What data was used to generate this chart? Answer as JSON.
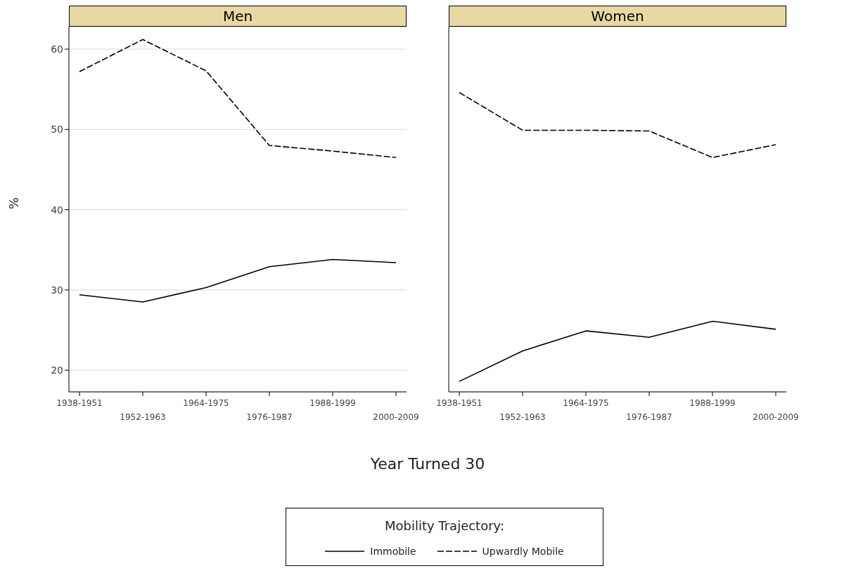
{
  "chart_data": [
    {
      "type": "line",
      "title": "Men",
      "xlabel": "Year Turned 30",
      "ylabel": "%",
      "legend_title": "Mobility Trajectory:",
      "legend": "bottom",
      "grid": "y",
      "marker": "none",
      "categories": [
        "1938-1951",
        "1952-1963",
        "1964-1975",
        "1976-1987",
        "1988-1999",
        "2000-2009"
      ],
      "ylim": [
        17.3,
        62.8
      ],
      "yticks": [
        20,
        30,
        40,
        50,
        60
      ],
      "series": [
        {
          "name": "Immobile",
          "color": "#000000",
          "line_style": "solid",
          "values": [
            29.4,
            28.5,
            30.3,
            32.9,
            33.8,
            33.4
          ]
        },
        {
          "name": "Upwardly Mobile",
          "color": "#000000",
          "line_style": "dashed",
          "values": [
            57.2,
            61.2,
            57.3,
            48.0,
            47.3,
            46.5
          ]
        }
      ]
    },
    {
      "type": "line",
      "title": "Women",
      "grid": "y",
      "marker": "none",
      "tick_labels": "x",
      "categories": [
        "1938-1951",
        "1952-1963",
        "1964-1975",
        "1976-1987",
        "1988-1999",
        "2000-2009"
      ],
      "ylim": [
        17.3,
        62.8
      ],
      "yticks": [
        20,
        30,
        40,
        50,
        60
      ],
      "series": [
        {
          "color": "#000000",
          "line_style": "solid",
          "values": [
            18.6,
            22.4,
            24.9,
            24.1,
            26.1,
            25.1
          ]
        },
        {
          "color": "#000000",
          "line_style": "dashed",
          "values": [
            54.6,
            49.9,
            49.9,
            49.8,
            46.5,
            48.1
          ]
        }
      ]
    }
  ]
}
